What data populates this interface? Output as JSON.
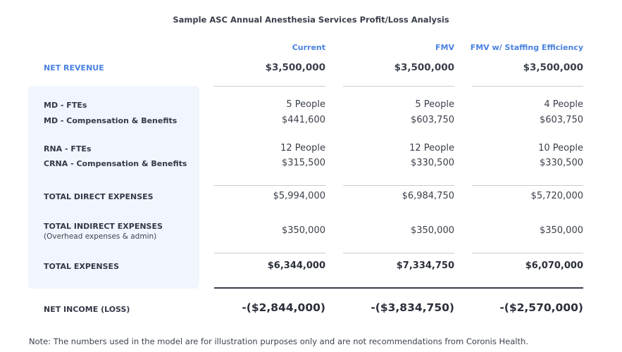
{
  "title": "Sample ASC Annual Anesthesia Services Profit/Loss Analysis",
  "columns": [
    "Current",
    "FMV",
    "FMV w/ Staffing Efficiency"
  ],
  "net_revenue": {
    "label": "NET REVENUE",
    "values": [
      "$3,500,000",
      "$3,500,000",
      "$3,500,000"
    ]
  },
  "md_ftes": {
    "label": "MD - FTEs",
    "values": [
      "5 People",
      "5 People",
      "4 People"
    ]
  },
  "md_comp": {
    "label": "MD - Compensation & Benefits",
    "values": [
      "$441,600",
      "$603,750",
      "$603,750"
    ]
  },
  "rna_ftes": {
    "label": "RNA - FTEs",
    "values": [
      "12 People",
      "12 People",
      "10 People"
    ]
  },
  "crna_comp": {
    "label": "CRNA - Compensation &  Benefits",
    "values": [
      "$315,500",
      "$330,500",
      "$330,500"
    ]
  },
  "total_direct": {
    "label": "TOTAL DIRECT EXPENSES",
    "values": [
      "$5,994,000",
      "$6,984,750",
      "$5,720,000"
    ]
  },
  "total_indirect": {
    "label": "TOTAL INDIRECT EXPENSES",
    "sublabel": "(Overhead expenses & admin)",
    "values": [
      "$350,000",
      "$350,000",
      "$350,000"
    ]
  },
  "total_expenses": {
    "label": "TOTAL EXPENSES",
    "values": [
      "$6,344,000",
      "$7,334,750",
      "$6,070,000"
    ]
  },
  "net_income": {
    "label": "NET INCOME (LOSS)",
    "values": [
      "-($2,844,000)",
      "-($3,834,750)",
      "-($2,570,000)"
    ]
  },
  "note": "Note: The numbers used in the model are for illustration purposes only and are not recommendations from Coronis Health.",
  "colors": {
    "accent": "#4a82e0",
    "panel": "#f1f5fd",
    "text": "#2f3542"
  }
}
